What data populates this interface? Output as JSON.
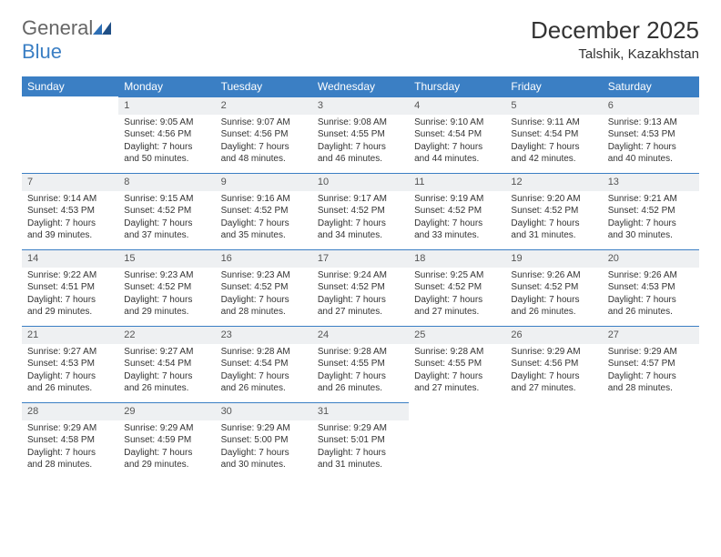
{
  "logo": {
    "text1": "General",
    "text2": "Blue"
  },
  "header": {
    "title": "December 2025",
    "location": "Talshik, Kazakhstan"
  },
  "colors": {
    "header_bg": "#3b7fc4",
    "header_text": "#ffffff",
    "daynum_bg": "#eef0f2",
    "daynum_border": "#3b7fc4",
    "body_text": "#333333",
    "page_bg": "#ffffff"
  },
  "day_headers": [
    "Sunday",
    "Monday",
    "Tuesday",
    "Wednesday",
    "Thursday",
    "Friday",
    "Saturday"
  ],
  "weeks": [
    [
      null,
      {
        "n": "1",
        "sunrise": "Sunrise: 9:05 AM",
        "sunset": "Sunset: 4:56 PM",
        "dl1": "Daylight: 7 hours",
        "dl2": "and 50 minutes."
      },
      {
        "n": "2",
        "sunrise": "Sunrise: 9:07 AM",
        "sunset": "Sunset: 4:56 PM",
        "dl1": "Daylight: 7 hours",
        "dl2": "and 48 minutes."
      },
      {
        "n": "3",
        "sunrise": "Sunrise: 9:08 AM",
        "sunset": "Sunset: 4:55 PM",
        "dl1": "Daylight: 7 hours",
        "dl2": "and 46 minutes."
      },
      {
        "n": "4",
        "sunrise": "Sunrise: 9:10 AM",
        "sunset": "Sunset: 4:54 PM",
        "dl1": "Daylight: 7 hours",
        "dl2": "and 44 minutes."
      },
      {
        "n": "5",
        "sunrise": "Sunrise: 9:11 AM",
        "sunset": "Sunset: 4:54 PM",
        "dl1": "Daylight: 7 hours",
        "dl2": "and 42 minutes."
      },
      {
        "n": "6",
        "sunrise": "Sunrise: 9:13 AM",
        "sunset": "Sunset: 4:53 PM",
        "dl1": "Daylight: 7 hours",
        "dl2": "and 40 minutes."
      }
    ],
    [
      {
        "n": "7",
        "sunrise": "Sunrise: 9:14 AM",
        "sunset": "Sunset: 4:53 PM",
        "dl1": "Daylight: 7 hours",
        "dl2": "and 39 minutes."
      },
      {
        "n": "8",
        "sunrise": "Sunrise: 9:15 AM",
        "sunset": "Sunset: 4:52 PM",
        "dl1": "Daylight: 7 hours",
        "dl2": "and 37 minutes."
      },
      {
        "n": "9",
        "sunrise": "Sunrise: 9:16 AM",
        "sunset": "Sunset: 4:52 PM",
        "dl1": "Daylight: 7 hours",
        "dl2": "and 35 minutes."
      },
      {
        "n": "10",
        "sunrise": "Sunrise: 9:17 AM",
        "sunset": "Sunset: 4:52 PM",
        "dl1": "Daylight: 7 hours",
        "dl2": "and 34 minutes."
      },
      {
        "n": "11",
        "sunrise": "Sunrise: 9:19 AM",
        "sunset": "Sunset: 4:52 PM",
        "dl1": "Daylight: 7 hours",
        "dl2": "and 33 minutes."
      },
      {
        "n": "12",
        "sunrise": "Sunrise: 9:20 AM",
        "sunset": "Sunset: 4:52 PM",
        "dl1": "Daylight: 7 hours",
        "dl2": "and 31 minutes."
      },
      {
        "n": "13",
        "sunrise": "Sunrise: 9:21 AM",
        "sunset": "Sunset: 4:52 PM",
        "dl1": "Daylight: 7 hours",
        "dl2": "and 30 minutes."
      }
    ],
    [
      {
        "n": "14",
        "sunrise": "Sunrise: 9:22 AM",
        "sunset": "Sunset: 4:51 PM",
        "dl1": "Daylight: 7 hours",
        "dl2": "and 29 minutes."
      },
      {
        "n": "15",
        "sunrise": "Sunrise: 9:23 AM",
        "sunset": "Sunset: 4:52 PM",
        "dl1": "Daylight: 7 hours",
        "dl2": "and 29 minutes."
      },
      {
        "n": "16",
        "sunrise": "Sunrise: 9:23 AM",
        "sunset": "Sunset: 4:52 PM",
        "dl1": "Daylight: 7 hours",
        "dl2": "and 28 minutes."
      },
      {
        "n": "17",
        "sunrise": "Sunrise: 9:24 AM",
        "sunset": "Sunset: 4:52 PM",
        "dl1": "Daylight: 7 hours",
        "dl2": "and 27 minutes."
      },
      {
        "n": "18",
        "sunrise": "Sunrise: 9:25 AM",
        "sunset": "Sunset: 4:52 PM",
        "dl1": "Daylight: 7 hours",
        "dl2": "and 27 minutes."
      },
      {
        "n": "19",
        "sunrise": "Sunrise: 9:26 AM",
        "sunset": "Sunset: 4:52 PM",
        "dl1": "Daylight: 7 hours",
        "dl2": "and 26 minutes."
      },
      {
        "n": "20",
        "sunrise": "Sunrise: 9:26 AM",
        "sunset": "Sunset: 4:53 PM",
        "dl1": "Daylight: 7 hours",
        "dl2": "and 26 minutes."
      }
    ],
    [
      {
        "n": "21",
        "sunrise": "Sunrise: 9:27 AM",
        "sunset": "Sunset: 4:53 PM",
        "dl1": "Daylight: 7 hours",
        "dl2": "and 26 minutes."
      },
      {
        "n": "22",
        "sunrise": "Sunrise: 9:27 AM",
        "sunset": "Sunset: 4:54 PM",
        "dl1": "Daylight: 7 hours",
        "dl2": "and 26 minutes."
      },
      {
        "n": "23",
        "sunrise": "Sunrise: 9:28 AM",
        "sunset": "Sunset: 4:54 PM",
        "dl1": "Daylight: 7 hours",
        "dl2": "and 26 minutes."
      },
      {
        "n": "24",
        "sunrise": "Sunrise: 9:28 AM",
        "sunset": "Sunset: 4:55 PM",
        "dl1": "Daylight: 7 hours",
        "dl2": "and 26 minutes."
      },
      {
        "n": "25",
        "sunrise": "Sunrise: 9:28 AM",
        "sunset": "Sunset: 4:55 PM",
        "dl1": "Daylight: 7 hours",
        "dl2": "and 27 minutes."
      },
      {
        "n": "26",
        "sunrise": "Sunrise: 9:29 AM",
        "sunset": "Sunset: 4:56 PM",
        "dl1": "Daylight: 7 hours",
        "dl2": "and 27 minutes."
      },
      {
        "n": "27",
        "sunrise": "Sunrise: 9:29 AM",
        "sunset": "Sunset: 4:57 PM",
        "dl1": "Daylight: 7 hours",
        "dl2": "and 28 minutes."
      }
    ],
    [
      {
        "n": "28",
        "sunrise": "Sunrise: 9:29 AM",
        "sunset": "Sunset: 4:58 PM",
        "dl1": "Daylight: 7 hours",
        "dl2": "and 28 minutes."
      },
      {
        "n": "29",
        "sunrise": "Sunrise: 9:29 AM",
        "sunset": "Sunset: 4:59 PM",
        "dl1": "Daylight: 7 hours",
        "dl2": "and 29 minutes."
      },
      {
        "n": "30",
        "sunrise": "Sunrise: 9:29 AM",
        "sunset": "Sunset: 5:00 PM",
        "dl1": "Daylight: 7 hours",
        "dl2": "and 30 minutes."
      },
      {
        "n": "31",
        "sunrise": "Sunrise: 9:29 AM",
        "sunset": "Sunset: 5:01 PM",
        "dl1": "Daylight: 7 hours",
        "dl2": "and 31 minutes."
      },
      null,
      null,
      null
    ]
  ]
}
